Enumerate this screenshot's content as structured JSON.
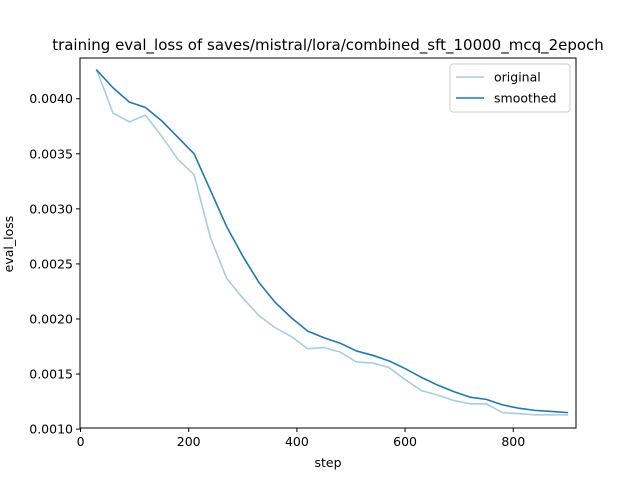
{
  "chart_data": {
    "type": "line",
    "title": "training eval_loss of saves/mistral/lora/combined_sft_10000_mcq_2epoch",
    "xlabel": "step",
    "ylabel": "eval_loss",
    "xlim": [
      -1,
      916
    ],
    "ylim": [
      0.00101,
      0.00437
    ],
    "xticks": [
      0,
      200,
      400,
      600,
      800
    ],
    "xtick_labels": [
      "0",
      "200",
      "400",
      "600",
      "800"
    ],
    "yticks": [
      0.001,
      0.0015,
      0.002,
      0.0025,
      0.003,
      0.0035,
      0.004
    ],
    "ytick_labels": [
      "0.0010",
      "0.0015",
      "0.0020",
      "0.0025",
      "0.0030",
      "0.0035",
      "0.0040"
    ],
    "grid": false,
    "legend_position": "top-right",
    "x": [
      30,
      60,
      90,
      120,
      150,
      180,
      210,
      240,
      270,
      300,
      330,
      360,
      390,
      420,
      450,
      480,
      510,
      540,
      570,
      600,
      630,
      660,
      690,
      720,
      750,
      780,
      810,
      840,
      870,
      900
    ],
    "series": [
      {
        "name": "original",
        "color": "#a6cee3",
        "values": [
          0.00426,
          0.00387,
          0.00379,
          0.00385,
          0.00366,
          0.00345,
          0.00331,
          0.00274,
          0.00237,
          0.00219,
          0.00203,
          0.00192,
          0.00184,
          0.00173,
          0.00174,
          0.0017,
          0.00161,
          0.0016,
          0.00156,
          0.00145,
          0.00135,
          0.00131,
          0.00126,
          0.00123,
          0.00123,
          0.00115,
          0.00114,
          0.00113,
          0.00113,
          0.00113
        ]
      },
      {
        "name": "smoothed",
        "color": "#1f78b4",
        "values": [
          0.00426,
          0.0041,
          0.00397,
          0.00392,
          0.0038,
          0.00365,
          0.0035,
          0.00317,
          0.00284,
          0.00257,
          0.00233,
          0.00215,
          0.00201,
          0.00189,
          0.00183,
          0.00178,
          0.00171,
          0.00167,
          0.00162,
          0.00155,
          0.00147,
          0.0014,
          0.00134,
          0.00129,
          0.00127,
          0.00122,
          0.00119,
          0.00117,
          0.00116,
          0.00115
        ]
      }
    ]
  }
}
